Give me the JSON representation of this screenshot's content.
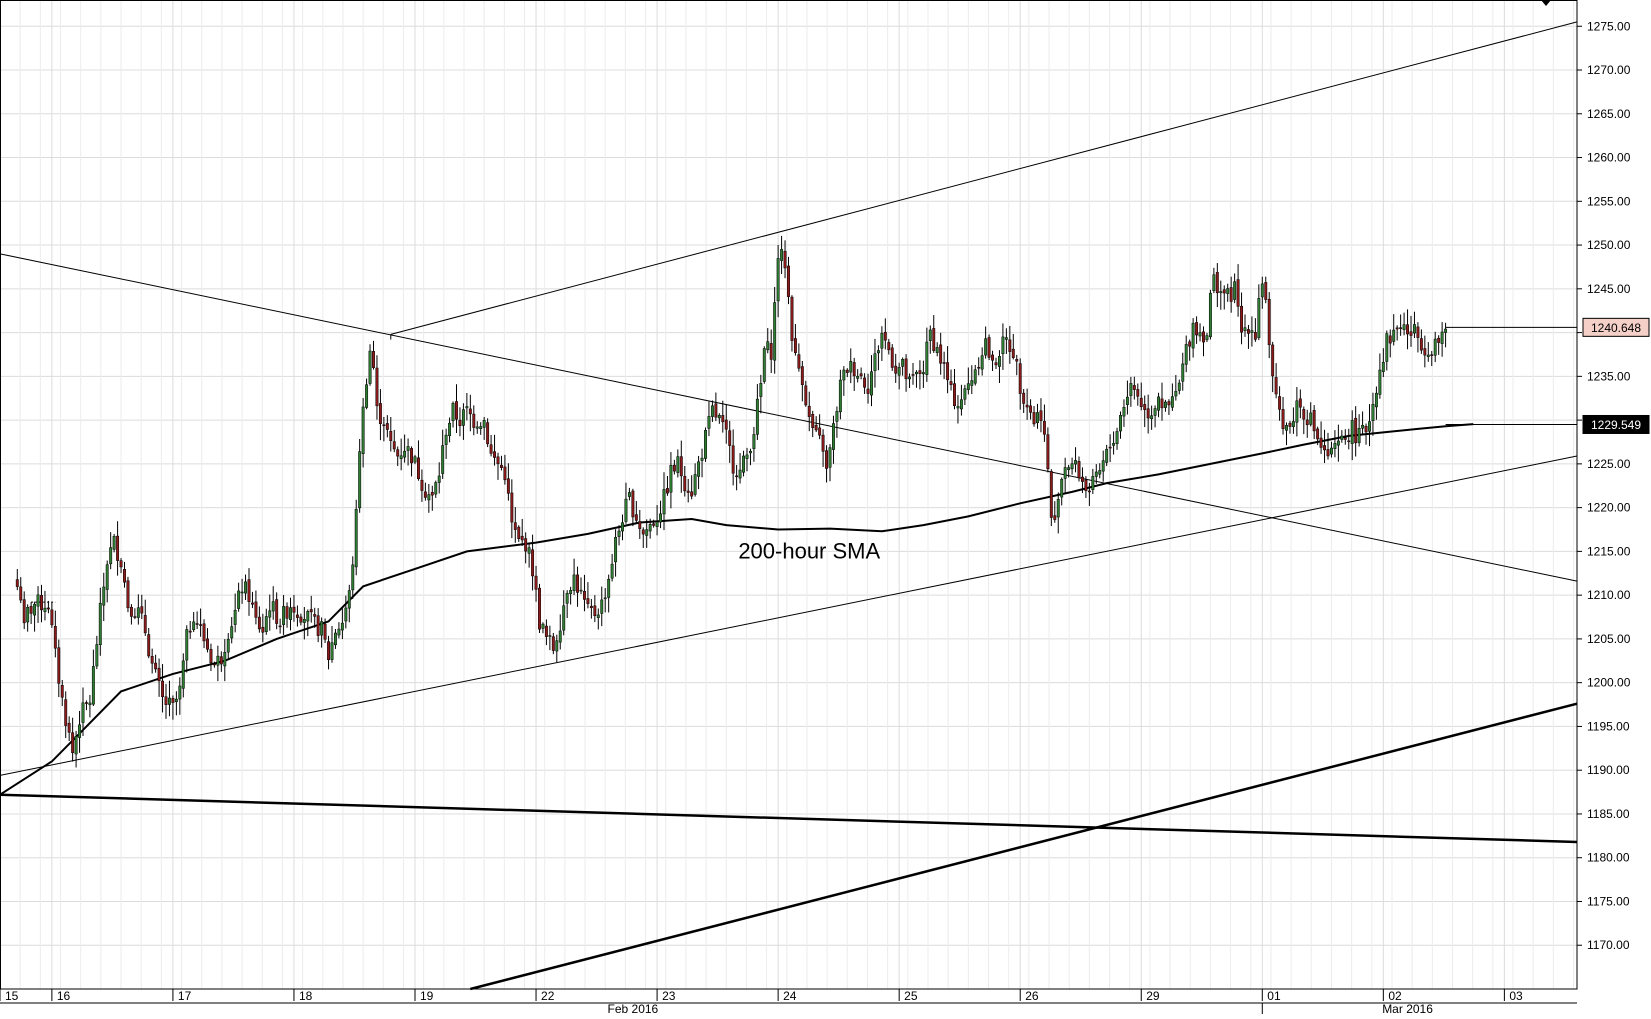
{
  "chart_data": {
    "type": "candlestick",
    "title": "",
    "xlabel": "",
    "ylabel": "",
    "ylim": [
      1165,
      1278
    ],
    "x_range_hours": [
      -5,
      451
    ],
    "grid": true,
    "price_axis_side": "right",
    "y_ticks": [
      "1170.00",
      "1175.00",
      "1180.00",
      "1185.00",
      "1190.00",
      "1195.00",
      "1200.00",
      "1205.00",
      "1210.00",
      "1215.00",
      "1220.00",
      "1225.00",
      "1230.00",
      "1235.00",
      "1240.00",
      "1245.00",
      "1250.00",
      "1255.00",
      "1260.00",
      "1265.00",
      "1270.00",
      "1275.00"
    ],
    "x_day_ticks": [
      {
        "label": "15",
        "hour": -5
      },
      {
        "label": "16",
        "hour": 10
      },
      {
        "label": "17",
        "hour": 45
      },
      {
        "label": "18",
        "hour": 80
      },
      {
        "label": "19",
        "hour": 115
      },
      {
        "label": "22",
        "hour": 150
      },
      {
        "label": "23",
        "hour": 185
      },
      {
        "label": "24",
        "hour": 220
      },
      {
        "label": "25",
        "hour": 255
      },
      {
        "label": "26",
        "hour": 290
      },
      {
        "label": "29",
        "hour": 325
      },
      {
        "label": "01",
        "hour": 360
      },
      {
        "label": "02",
        "hour": 395
      },
      {
        "label": "03",
        "hour": 430
      }
    ],
    "x_month_labels": [
      {
        "label": "Feb 2016",
        "hour": 178
      },
      {
        "label": "Mar 2016",
        "hour": 402
      }
    ],
    "price_badges": [
      {
        "label": "1240.648",
        "value": 1240.6,
        "style": "current"
      },
      {
        "label": "1229.549",
        "value": 1229.5,
        "style": "sma"
      }
    ],
    "annotations": [
      {
        "text": "200-hour SMA",
        "hour": 229,
        "value": 1214.2
      }
    ],
    "colors": {
      "up": "#2f7d32",
      "down": "#8b1a1a",
      "grid": "#dcdcdc",
      "line": "#000000",
      "badge_current": "#f4d0c8"
    },
    "price_anchors": [
      [
        0,
        1211
      ],
      [
        1,
        1210
      ],
      [
        2,
        1206
      ],
      [
        3,
        1208
      ],
      [
        5,
        1209
      ],
      [
        7,
        1209
      ],
      [
        9,
        1209
      ],
      [
        11,
        1203
      ],
      [
        13,
        1198
      ],
      [
        15,
        1194
      ],
      [
        16,
        1192
      ],
      [
        18,
        1196
      ],
      [
        21,
        1198
      ],
      [
        24,
        1208
      ],
      [
        26,
        1214
      ],
      [
        28,
        1216
      ],
      [
        30,
        1214
      ],
      [
        32,
        1209
      ],
      [
        35,
        1208
      ],
      [
        37,
        1206
      ],
      [
        39,
        1202
      ],
      [
        42,
        1198
      ],
      [
        45,
        1197
      ],
      [
        47,
        1199
      ],
      [
        49,
        1205
      ],
      [
        51,
        1208
      ],
      [
        53,
        1206
      ],
      [
        55,
        1204
      ],
      [
        57,
        1202
      ],
      [
        59,
        1203
      ],
      [
        61,
        1206
      ],
      [
        63,
        1208
      ],
      [
        65,
        1211
      ],
      [
        67,
        1210
      ],
      [
        69,
        1207
      ],
      [
        71,
        1206
      ],
      [
        73,
        1209
      ],
      [
        76,
        1207
      ],
      [
        79,
        1209
      ],
      [
        82,
        1208
      ],
      [
        85,
        1207
      ],
      [
        88,
        1206
      ],
      [
        90,
        1203
      ],
      [
        92,
        1206
      ],
      [
        94,
        1207
      ],
      [
        96,
        1210
      ],
      [
        97,
        1214
      ],
      [
        98,
        1219
      ],
      [
        99,
        1227
      ],
      [
        100,
        1231
      ],
      [
        101,
        1235
      ],
      [
        102,
        1238
      ],
      [
        103,
        1236
      ],
      [
        104,
        1231
      ],
      [
        106,
        1230
      ],
      [
        108,
        1227
      ],
      [
        110,
        1226
      ],
      [
        112,
        1227
      ],
      [
        114,
        1226
      ],
      [
        116,
        1224
      ],
      [
        118,
        1222
      ],
      [
        120,
        1221
      ],
      [
        122,
        1224
      ],
      [
        124,
        1229
      ],
      [
        126,
        1231
      ],
      [
        128,
        1230
      ],
      [
        130,
        1231
      ],
      [
        132,
        1230
      ],
      [
        135,
        1230
      ],
      [
        137,
        1226
      ],
      [
        139,
        1225
      ],
      [
        141,
        1224
      ],
      [
        143,
        1218
      ],
      [
        145,
        1216
      ],
      [
        147,
        1216
      ],
      [
        149,
        1213
      ],
      [
        150,
        1210
      ],
      [
        151,
        1207
      ],
      [
        153,
        1205
      ],
      [
        155,
        1204
      ],
      [
        157,
        1207
      ],
      [
        159,
        1211
      ],
      [
        161,
        1212
      ],
      [
        163,
        1210
      ],
      [
        165,
        1208
      ],
      [
        167,
        1208
      ],
      [
        169,
        1209
      ],
      [
        171,
        1212
      ],
      [
        173,
        1216
      ],
      [
        175,
        1219
      ],
      [
        177,
        1221
      ],
      [
        179,
        1219
      ],
      [
        181,
        1217
      ],
      [
        183,
        1218
      ],
      [
        185,
        1219
      ],
      [
        187,
        1221
      ],
      [
        189,
        1224
      ],
      [
        191,
        1225
      ],
      [
        193,
        1223
      ],
      [
        195,
        1222
      ],
      [
        197,
        1225
      ],
      [
        199,
        1228
      ],
      [
        201,
        1231
      ],
      [
        203,
        1230
      ],
      [
        205,
        1228
      ],
      [
        207,
        1225
      ],
      [
        209,
        1224
      ],
      [
        211,
        1226
      ],
      [
        213,
        1229
      ],
      [
        215,
        1234
      ],
      [
        216,
        1238
      ],
      [
        218,
        1238
      ],
      [
        219,
        1243
      ],
      [
        220,
        1249
      ],
      [
        222,
        1248
      ],
      [
        223,
        1244
      ],
      [
        224,
        1240
      ],
      [
        225,
        1237
      ],
      [
        227,
        1235
      ],
      [
        229,
        1230
      ],
      [
        231,
        1228
      ],
      [
        233,
        1227
      ],
      [
        234,
        1224
      ],
      [
        236,
        1229
      ],
      [
        238,
        1234
      ],
      [
        240,
        1236
      ],
      [
        242,
        1236
      ],
      [
        244,
        1235
      ],
      [
        246,
        1234
      ],
      [
        248,
        1237
      ],
      [
        250,
        1240
      ],
      [
        252,
        1238
      ],
      [
        254,
        1236
      ],
      [
        256,
        1236
      ],
      [
        258,
        1234
      ],
      [
        260,
        1235
      ],
      [
        262,
        1236
      ],
      [
        264,
        1240
      ],
      [
        266,
        1238
      ],
      [
        268,
        1236
      ],
      [
        270,
        1233
      ],
      [
        272,
        1232
      ],
      [
        274,
        1233
      ],
      [
        276,
        1235
      ],
      [
        278,
        1237
      ],
      [
        280,
        1239
      ],
      [
        282,
        1236
      ],
      [
        284,
        1238
      ],
      [
        286,
        1239
      ],
      [
        288,
        1238
      ],
      [
        290,
        1234
      ],
      [
        292,
        1232
      ],
      [
        294,
        1230
      ],
      [
        296,
        1231
      ],
      [
        297,
        1228
      ],
      [
        298,
        1224
      ],
      [
        299,
        1219
      ],
      [
        300,
        1218
      ],
      [
        301,
        1222
      ],
      [
        303,
        1225
      ],
      [
        305,
        1225
      ],
      [
        307,
        1224
      ],
      [
        308,
        1223
      ],
      [
        310,
        1222
      ],
      [
        312,
        1223
      ],
      [
        314,
        1225
      ],
      [
        316,
        1227
      ],
      [
        318,
        1229
      ],
      [
        320,
        1232
      ],
      [
        322,
        1234
      ],
      [
        324,
        1233
      ],
      [
        326,
        1231
      ],
      [
        328,
        1231
      ],
      [
        330,
        1233
      ],
      [
        332,
        1231
      ],
      [
        334,
        1232
      ],
      [
        336,
        1234
      ],
      [
        338,
        1238
      ],
      [
        340,
        1241
      ],
      [
        342,
        1240
      ],
      [
        344,
        1240
      ],
      [
        345,
        1244
      ],
      [
        346,
        1246
      ],
      [
        348,
        1245
      ],
      [
        350,
        1244
      ],
      [
        352,
        1245
      ],
      [
        354,
        1240
      ],
      [
        356,
        1241
      ],
      [
        358,
        1240
      ],
      [
        359,
        1244
      ],
      [
        360,
        1246
      ],
      [
        361,
        1244
      ],
      [
        362,
        1238
      ],
      [
        363,
        1234
      ],
      [
        364,
        1232
      ],
      [
        366,
        1230
      ],
      [
        368,
        1229
      ],
      [
        370,
        1232
      ],
      [
        372,
        1231
      ],
      [
        374,
        1230
      ],
      [
        376,
        1228
      ],
      [
        378,
        1226
      ],
      [
        380,
        1226
      ],
      [
        382,
        1227
      ],
      [
        384,
        1228
      ],
      [
        386,
        1229
      ],
      [
        388,
        1228
      ],
      [
        390,
        1229
      ],
      [
        392,
        1232
      ],
      [
        394,
        1236
      ],
      [
        396,
        1239
      ],
      [
        398,
        1240
      ],
      [
        400,
        1241
      ],
      [
        402,
        1240
      ],
      [
        404,
        1240
      ],
      [
        406,
        1239
      ],
      [
        408,
        1238
      ],
      [
        410,
        1239
      ],
      [
        412,
        1239
      ],
      [
        413,
        1240.6
      ]
    ],
    "candle_count": 414,
    "sma_200": [
      [
        -5,
        1187.2
      ],
      [
        10,
        1191
      ],
      [
        20,
        1195
      ],
      [
        30,
        1199
      ],
      [
        45,
        1201
      ],
      [
        60,
        1202.5
      ],
      [
        75,
        1205
      ],
      [
        90,
        1207
      ],
      [
        100,
        1211
      ],
      [
        115,
        1213
      ],
      [
        130,
        1215
      ],
      [
        150,
        1216
      ],
      [
        165,
        1217
      ],
      [
        180,
        1218.3
      ],
      [
        195,
        1218.7
      ],
      [
        205,
        1218
      ],
      [
        220,
        1217.5
      ],
      [
        235,
        1217.6
      ],
      [
        250,
        1217.3
      ],
      [
        262,
        1218
      ],
      [
        275,
        1219
      ],
      [
        290,
        1220.5
      ],
      [
        305,
        1221.8
      ],
      [
        315,
        1222.8
      ],
      [
        330,
        1223.8
      ],
      [
        345,
        1225
      ],
      [
        360,
        1226.2
      ],
      [
        372,
        1227.2
      ],
      [
        385,
        1228.2
      ],
      [
        395,
        1228.6
      ],
      [
        405,
        1229
      ],
      [
        413,
        1229.3
      ],
      [
        421,
        1229.549
      ]
    ],
    "trendlines": [
      {
        "name": "channel-upper-line",
        "from": [
          108,
          1239.8
        ],
        "to": [
          451,
          1275.5
        ],
        "stroke": 1
      },
      {
        "name": "channel-lower-line",
        "from": [
          -5,
          1189.4
        ],
        "to": [
          451,
          1225.9
        ],
        "stroke": 1
      },
      {
        "name": "channel-start-connector",
        "from": [
          108,
          1239.8
        ],
        "to": [
          108,
          1239.2
        ],
        "stroke": 1
      },
      {
        "name": "descending-trendline",
        "from": [
          -5,
          1249
        ],
        "to": [
          451,
          1211.6
        ],
        "stroke": 1
      },
      {
        "name": "long-term-rising-line",
        "from": [
          131,
          1165
        ],
        "to": [
          451,
          1197.6
        ],
        "stroke": 2.5
      },
      {
        "name": "long-term-flat-line",
        "from": [
          -5,
          1187.2
        ],
        "to": [
          451,
          1181.8
        ],
        "stroke": 2.5
      }
    ]
  }
}
